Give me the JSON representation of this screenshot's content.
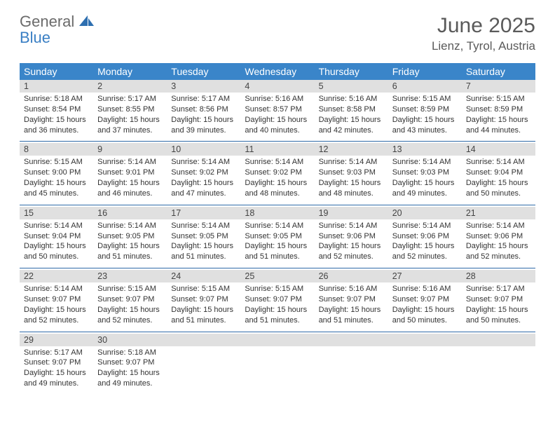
{
  "logo": {
    "text1": "General",
    "text2": "Blue"
  },
  "title": "June 2025",
  "location": "Lienz, Tyrol, Austria",
  "colors": {
    "header_bg": "#3a85c9",
    "header_fg": "#ffffff",
    "daynum_bg": "#e0e0e0",
    "border": "#2f6aa8",
    "text": "#333333",
    "logo_gray": "#6b6b6b",
    "logo_blue": "#3a7fc4"
  },
  "day_names": [
    "Sunday",
    "Monday",
    "Tuesday",
    "Wednesday",
    "Thursday",
    "Friday",
    "Saturday"
  ],
  "weeks": [
    [
      {
        "n": "1",
        "sr": "5:18 AM",
        "ss": "8:54 PM",
        "dl": "15 hours and 36 minutes."
      },
      {
        "n": "2",
        "sr": "5:17 AM",
        "ss": "8:55 PM",
        "dl": "15 hours and 37 minutes."
      },
      {
        "n": "3",
        "sr": "5:17 AM",
        "ss": "8:56 PM",
        "dl": "15 hours and 39 minutes."
      },
      {
        "n": "4",
        "sr": "5:16 AM",
        "ss": "8:57 PM",
        "dl": "15 hours and 40 minutes."
      },
      {
        "n": "5",
        "sr": "5:16 AM",
        "ss": "8:58 PM",
        "dl": "15 hours and 42 minutes."
      },
      {
        "n": "6",
        "sr": "5:15 AM",
        "ss": "8:59 PM",
        "dl": "15 hours and 43 minutes."
      },
      {
        "n": "7",
        "sr": "5:15 AM",
        "ss": "8:59 PM",
        "dl": "15 hours and 44 minutes."
      }
    ],
    [
      {
        "n": "8",
        "sr": "5:15 AM",
        "ss": "9:00 PM",
        "dl": "15 hours and 45 minutes."
      },
      {
        "n": "9",
        "sr": "5:14 AM",
        "ss": "9:01 PM",
        "dl": "15 hours and 46 minutes."
      },
      {
        "n": "10",
        "sr": "5:14 AM",
        "ss": "9:02 PM",
        "dl": "15 hours and 47 minutes."
      },
      {
        "n": "11",
        "sr": "5:14 AM",
        "ss": "9:02 PM",
        "dl": "15 hours and 48 minutes."
      },
      {
        "n": "12",
        "sr": "5:14 AM",
        "ss": "9:03 PM",
        "dl": "15 hours and 48 minutes."
      },
      {
        "n": "13",
        "sr": "5:14 AM",
        "ss": "9:03 PM",
        "dl": "15 hours and 49 minutes."
      },
      {
        "n": "14",
        "sr": "5:14 AM",
        "ss": "9:04 PM",
        "dl": "15 hours and 50 minutes."
      }
    ],
    [
      {
        "n": "15",
        "sr": "5:14 AM",
        "ss": "9:04 PM",
        "dl": "15 hours and 50 minutes."
      },
      {
        "n": "16",
        "sr": "5:14 AM",
        "ss": "9:05 PM",
        "dl": "15 hours and 51 minutes."
      },
      {
        "n": "17",
        "sr": "5:14 AM",
        "ss": "9:05 PM",
        "dl": "15 hours and 51 minutes."
      },
      {
        "n": "18",
        "sr": "5:14 AM",
        "ss": "9:05 PM",
        "dl": "15 hours and 51 minutes."
      },
      {
        "n": "19",
        "sr": "5:14 AM",
        "ss": "9:06 PM",
        "dl": "15 hours and 52 minutes."
      },
      {
        "n": "20",
        "sr": "5:14 AM",
        "ss": "9:06 PM",
        "dl": "15 hours and 52 minutes."
      },
      {
        "n": "21",
        "sr": "5:14 AM",
        "ss": "9:06 PM",
        "dl": "15 hours and 52 minutes."
      }
    ],
    [
      {
        "n": "22",
        "sr": "5:14 AM",
        "ss": "9:07 PM",
        "dl": "15 hours and 52 minutes."
      },
      {
        "n": "23",
        "sr": "5:15 AM",
        "ss": "9:07 PM",
        "dl": "15 hours and 52 minutes."
      },
      {
        "n": "24",
        "sr": "5:15 AM",
        "ss": "9:07 PM",
        "dl": "15 hours and 51 minutes."
      },
      {
        "n": "25",
        "sr": "5:15 AM",
        "ss": "9:07 PM",
        "dl": "15 hours and 51 minutes."
      },
      {
        "n": "26",
        "sr": "5:16 AM",
        "ss": "9:07 PM",
        "dl": "15 hours and 51 minutes."
      },
      {
        "n": "27",
        "sr": "5:16 AM",
        "ss": "9:07 PM",
        "dl": "15 hours and 50 minutes."
      },
      {
        "n": "28",
        "sr": "5:17 AM",
        "ss": "9:07 PM",
        "dl": "15 hours and 50 minutes."
      }
    ],
    [
      {
        "n": "29",
        "sr": "5:17 AM",
        "ss": "9:07 PM",
        "dl": "15 hours and 49 minutes."
      },
      {
        "n": "30",
        "sr": "5:18 AM",
        "ss": "9:07 PM",
        "dl": "15 hours and 49 minutes."
      },
      null,
      null,
      null,
      null,
      null
    ]
  ],
  "labels": {
    "sunrise": "Sunrise:",
    "sunset": "Sunset:",
    "daylight": "Daylight:"
  }
}
